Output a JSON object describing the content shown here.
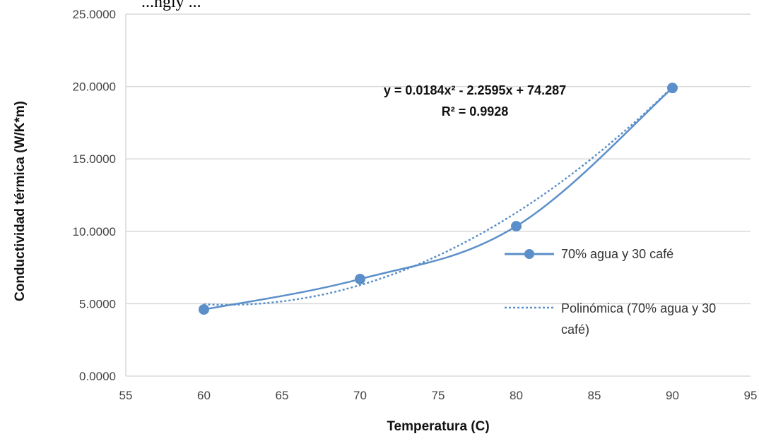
{
  "top_text": "...ngly ...",
  "chart_data": {
    "type": "line",
    "x": [
      60,
      70,
      80,
      90
    ],
    "series": [
      {
        "name": "70% agua y 30 café",
        "values": [
          4.6,
          6.7,
          10.35,
          19.9
        ],
        "color": "#5b8fc9",
        "style": "solid-markers"
      }
    ],
    "trendline": {
      "name": "Polinómica (70% agua y 30 café)",
      "legend_line1": "Polinómica (70% agua y 30",
      "legend_line2": "café)",
      "coefficients": [
        0.0184,
        -2.2595,
        74.287
      ],
      "color": "#5b8fc9",
      "style": "dotted"
    },
    "equation": "y = 0.0184x² - 2.2595x + 74.287",
    "r2": "R² = 0.9928",
    "xlabel": "Temperatura (C)",
    "ylabel": "Conductividad térmica (W/K*m)",
    "xlim": [
      55,
      95
    ],
    "ylim": [
      0,
      25
    ],
    "xticks": [
      "55",
      "60",
      "65",
      "70",
      "75",
      "80",
      "85",
      "90",
      "95"
    ],
    "yticks": [
      "0.0000",
      "5.0000",
      "10.0000",
      "15.0000",
      "20.0000",
      "25.0000"
    ],
    "grid": "horizontal",
    "legend_position": "right"
  }
}
